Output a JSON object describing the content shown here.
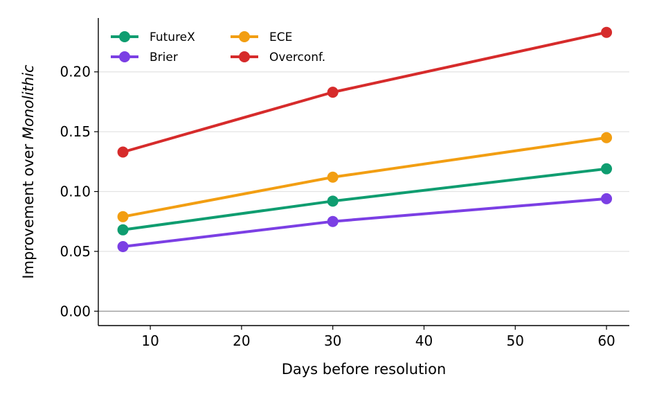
{
  "chart_data": {
    "type": "line",
    "xlabel": "Days before resolution",
    "ylabel_prefix": "Improvement over ",
    "ylabel_emphasis": "Monolithic",
    "xlim": [
      4.3,
      62.5
    ],
    "ylim": [
      -0.012,
      0.245
    ],
    "xticks": [
      10,
      20,
      30,
      40,
      50,
      60
    ],
    "yticks": [
      0.0,
      0.05,
      0.1,
      0.15,
      0.2
    ],
    "xtick_labels": [
      "10",
      "20",
      "30",
      "40",
      "50",
      "60"
    ],
    "ytick_labels": [
      "0.00",
      "0.05",
      "0.10",
      "0.15",
      "0.20"
    ],
    "grid": "horizontal",
    "legend": "top-left",
    "x": [
      7,
      30,
      60
    ],
    "series": [
      {
        "name": "FutureX",
        "values": [
          0.068,
          0.092,
          0.119
        ],
        "color": "#0f9d70"
      },
      {
        "name": "Brier",
        "values": [
          0.054,
          0.075,
          0.094
        ],
        "color": "#7b3fe4"
      },
      {
        "name": "ECE",
        "values": [
          0.079,
          0.112,
          0.145
        ],
        "color": "#f29e12"
      },
      {
        "name": "Overconf.",
        "values": [
          0.133,
          0.183,
          0.233
        ],
        "color": "#d62b2b"
      }
    ]
  }
}
